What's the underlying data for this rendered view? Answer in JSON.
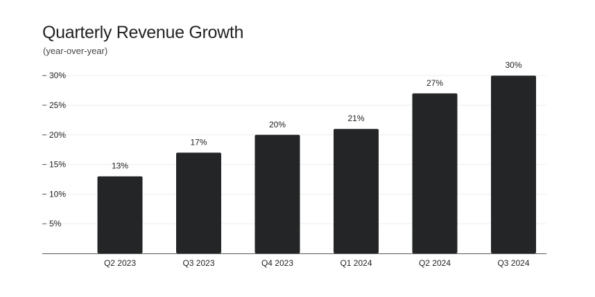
{
  "chart_data": {
    "type": "bar",
    "title": "Quarterly Revenue Growth",
    "subtitle": "(year-over-year)",
    "categories": [
      "Q2 2023",
      "Q3 2023",
      "Q4 2023",
      "Q1 2024",
      "Q2 2024",
      "Q3 2024"
    ],
    "values": [
      13,
      17,
      20,
      21,
      27,
      30
    ],
    "data_labels": [
      "13%",
      "17%",
      "20%",
      "21%",
      "27%",
      "30%"
    ],
    "y_ticks": [
      5,
      10,
      15,
      20,
      25,
      30
    ],
    "y_tick_labels": [
      "5%",
      "10%",
      "15%",
      "20%",
      "25%",
      "30%"
    ],
    "ylim": [
      0,
      30
    ],
    "xlabel": "",
    "ylabel": "",
    "grid": true,
    "legend": "none",
    "colors": {
      "bar": "#232526",
      "text": "#222222",
      "grid": "#eeeeee",
      "axis": "#555555"
    }
  }
}
